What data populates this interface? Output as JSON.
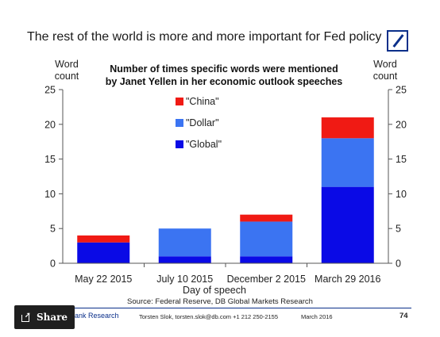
{
  "slide": {
    "title": "The rest of the world is more and more important for Fed policy",
    "source": "Source: Federal Reserve, DB Global Markets Research",
    "footer": {
      "dept": "Bank Research",
      "author": "Torsten Slok, torsten.slok@db.com  +1 212 250-2155",
      "date": "March 2016",
      "page": "74"
    },
    "share_label": "Share",
    "logo_icon": "deutsche-bank-logo"
  },
  "chart_data": {
    "type": "bar",
    "stacked": true,
    "title": "Number of times specific words were mentioned by Janet Yellen in her economic outlook speeches",
    "title_lines": [
      "Number of times specific words were mentioned",
      "by Janet Yellen in her economic outlook speeches"
    ],
    "xlabel": "Day of speech",
    "ylabel_left": [
      "Word",
      "count"
    ],
    "ylabel_right": [
      "Word",
      "count"
    ],
    "ylim": [
      0,
      25
    ],
    "yticks": [
      0,
      5,
      10,
      15,
      20,
      25
    ],
    "categories": [
      "May 22 2015",
      "July 10 2015",
      "December 2 2015",
      "March 29 2016"
    ],
    "series": [
      {
        "name": "\"Global\"",
        "color": "#0a0ae6",
        "values": [
          3,
          1,
          1,
          11
        ]
      },
      {
        "name": "\"Dollar\"",
        "color": "#3b74f2",
        "values": [
          0,
          4,
          5,
          7
        ]
      },
      {
        "name": "\"China\"",
        "color": "#f01a14",
        "values": [
          1,
          0,
          1,
          3
        ]
      }
    ],
    "legend_order": [
      "\"China\"",
      "\"Dollar\"",
      "\"Global\""
    ],
    "legend_position": "top-left",
    "grid": false
  }
}
